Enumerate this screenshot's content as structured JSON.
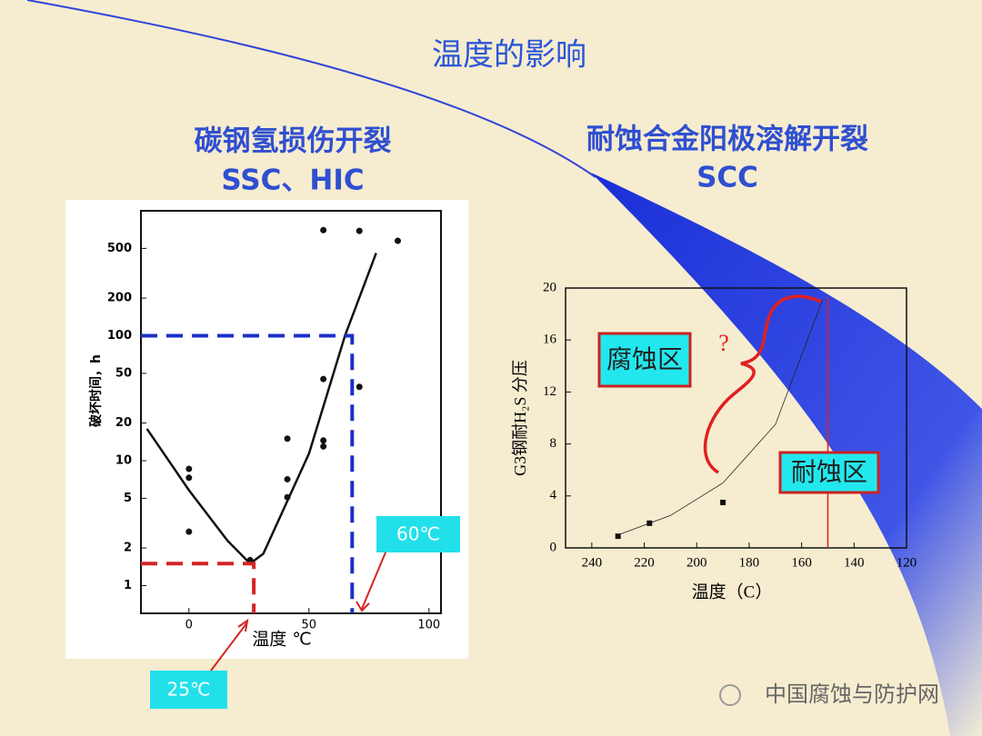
{
  "slide": {
    "title": "温度的影响",
    "left_heading": [
      "碳钢氢损伤开裂",
      "SSC、HIC"
    ],
    "right_heading": [
      "耐蚀合金阳极溶解开裂",
      "SCC"
    ],
    "watermark": "中国腐蚀与防护网"
  },
  "chart_data": [
    {
      "type": "scatter",
      "y_label": "破坏时间，h",
      "x_label": "温度 ℃",
      "log_y": true,
      "xlim": [
        -20,
        105
      ],
      "xticks": [
        0,
        50,
        100
      ],
      "ylim": [
        0.6,
        1000
      ],
      "yticks": [
        1,
        2,
        5,
        10,
        20,
        50,
        100,
        200,
        500
      ],
      "series": [
        {
          "mark": "point",
          "color": "#111111",
          "x": [
            0,
            0,
            0,
            25.5,
            41,
            41,
            41,
            56,
            56,
            56,
            71,
            56,
            71,
            87
          ],
          "values": [
            8.6,
            7.3,
            2.7,
            1.6,
            15,
            7.1,
            5.1,
            45,
            14.5,
            13,
            39,
            700,
            690,
            575
          ]
        },
        {
          "mark": "line",
          "color": "#111111",
          "x": [
            -17.5,
            0,
            16,
            25.5,
            31,
            50,
            65,
            78
          ],
          "values": [
            18,
            5.8,
            2.3,
            1.5,
            1.8,
            11.4,
            100,
            460
          ]
        },
        {
          "mark": "dashed",
          "color": "#d42424",
          "x": [
            -20,
            27,
            27
          ],
          "values": [
            1.5,
            1.5,
            0.6
          ]
        },
        {
          "mark": "dashed",
          "color": "#1c2fc8",
          "x": [
            -20,
            68,
            68
          ],
          "values": [
            100,
            100,
            0.6
          ]
        }
      ],
      "annotations": [
        "60℃",
        "25℃"
      ]
    },
    {
      "type": "scatter",
      "y_label": "G3钢耐H₂S 分压",
      "x_label": "温度（C）",
      "xlim": [
        250,
        120
      ],
      "xticks": [
        240,
        220,
        200,
        180,
        160,
        140,
        120
      ],
      "ylim": [
        0,
        20
      ],
      "yticks": [
        0,
        4,
        8,
        12,
        16,
        20
      ],
      "series": [
        {
          "mark": "point",
          "color": "#111111",
          "x": [
            230,
            218,
            190
          ],
          "values": [
            0.9,
            1.9,
            3.5
          ]
        },
        {
          "mark": "thin-line",
          "color": "#222222",
          "x": [
            230,
            210,
            190,
            170,
            152
          ],
          "values": [
            1,
            2.5,
            5,
            9.5,
            19.1
          ]
        }
      ],
      "reference_x": 150,
      "reference_color": "#e02020",
      "annotations": [
        "腐蚀区",
        "耐蚀区",
        "?"
      ]
    }
  ]
}
